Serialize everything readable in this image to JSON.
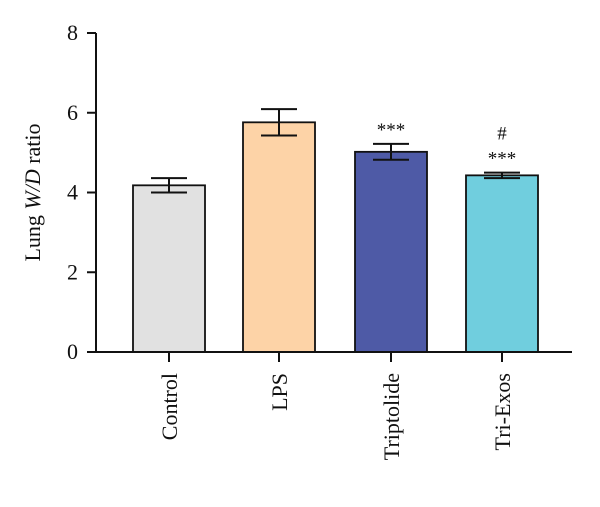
{
  "chart_data": {
    "type": "bar",
    "categories": [
      "Control",
      "LPS",
      "Triptolide",
      "Tri-Exos"
    ],
    "values": [
      4.18,
      5.76,
      5.02,
      4.43
    ],
    "errors": [
      0.18,
      0.33,
      0.2,
      0.07
    ],
    "colors": [
      "#e1e1e1",
      "#fdd3a7",
      "#4e5aa6",
      "#70cede"
    ],
    "annotations": [
      {
        "category": "Triptolide",
        "lines": [
          "***"
        ]
      },
      {
        "category": "Tri-Exos",
        "lines": [
          "#",
          "***"
        ]
      }
    ],
    "ylabel": {
      "parts": [
        {
          "text": "Lung ",
          "italic": false
        },
        {
          "text": "W/D",
          "italic": true
        },
        {
          "text": " ratio",
          "italic": false
        }
      ]
    },
    "xlabel": "",
    "ylim": [
      0,
      8
    ],
    "yticks": [
      0,
      2,
      4,
      6,
      8
    ],
    "grid": false,
    "legend": "none"
  }
}
